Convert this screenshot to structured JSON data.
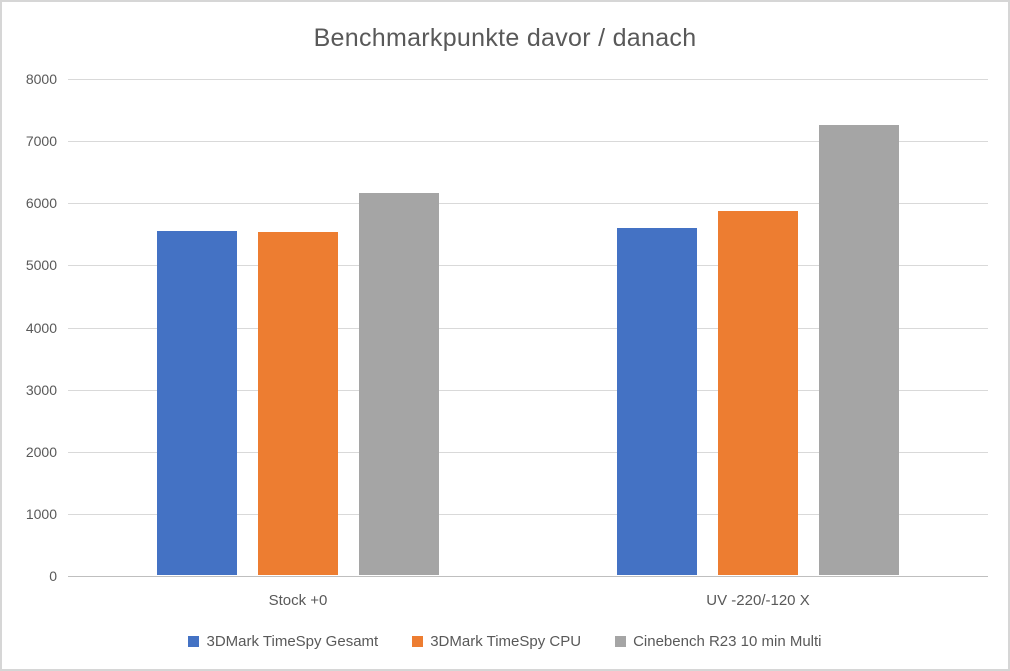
{
  "chart_data": {
    "type": "bar",
    "title": "Benchmarkpunkte davor / danach",
    "categories": [
      "Stock +0",
      "UV -220/-120 X"
    ],
    "series": [
      {
        "name": "3DMark TimeSpy Gesamt",
        "color": "#4472C4",
        "values": [
          5545,
          5590
        ]
      },
      {
        "name": "3DMark TimeSpy CPU",
        "color": "#ED7D31",
        "values": [
          5515,
          5860
        ]
      },
      {
        "name": "Cinebench R23 10 min Multi",
        "color": "#A5A5A5",
        "values": [
          6150,
          7240
        ]
      }
    ],
    "xlabel": "",
    "ylabel": "",
    "ylim": [
      0,
      8000
    ],
    "yticks": [
      0,
      1000,
      2000,
      3000,
      4000,
      5000,
      6000,
      7000,
      8000
    ],
    "grid": true,
    "legend_position": "bottom",
    "colors": {
      "gridline": "#d9d9d9",
      "axis_line": "#bfbfbf",
      "text": "#595959",
      "background": "#ffffff",
      "border": "#d6d6d6"
    }
  }
}
